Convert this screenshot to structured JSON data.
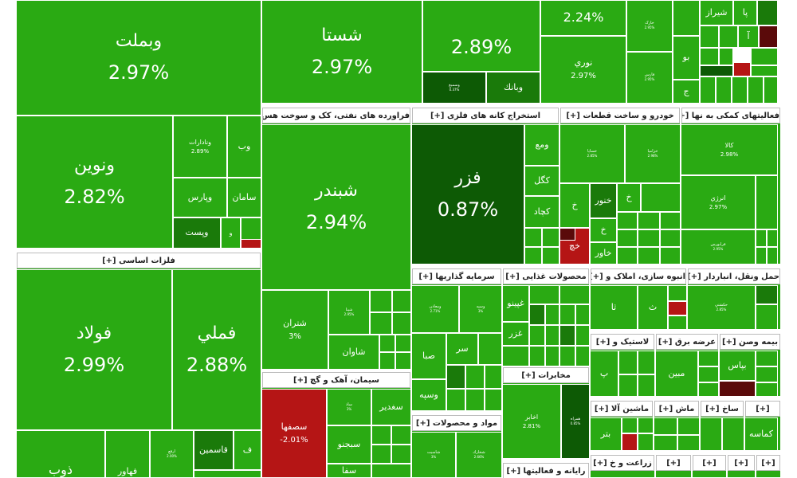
{
  "chart_data": {
    "type": "treemap",
    "colors": {
      "positive": "#2aaa13",
      "positive_dark": "#1a7a0a",
      "strong_dark": "#0d5a05",
      "negative": "#b51515",
      "negative_dark": "#5a0a0a",
      "border": "#ffffff"
    },
    "sectors": [
      {
        "id": "s_top_a",
        "label": ""
      },
      {
        "id": "s_top_b",
        "label": ""
      },
      {
        "id": "s_top_c",
        "label": ""
      },
      {
        "id": "s_top_d",
        "label": ""
      },
      {
        "id": "s_top_e",
        "label": ""
      },
      {
        "id": "s_base_metals",
        "label": "فلزات اساسی [+]"
      },
      {
        "id": "s_petroleum",
        "label": "فراورده های نفتی، کک و سوخت هس [+]"
      },
      {
        "id": "s_mining",
        "label": "استخراج کانه های فلزی [+]"
      },
      {
        "id": "s_auto",
        "label": "خودرو و ساخت قطعات [+]"
      },
      {
        "id": "s_aux",
        "label": "فعالیتهای کمکی به نها [+]"
      },
      {
        "id": "s_cement",
        "label": "سیمان، آهک و گچ [+]"
      },
      {
        "id": "s_investment",
        "label": "سرمایه گذاریها [+]"
      },
      {
        "id": "s_food",
        "label": "محصولات غذایی [+]"
      },
      {
        "id": "s_realestate",
        "label": "انبوه سازی، املاک و [+]"
      },
      {
        "id": "s_transport",
        "label": "حمل ونقل، انباردار [+]"
      },
      {
        "id": "s_telecom",
        "label": "مخابرات [+]"
      },
      {
        "id": "s_chemical",
        "label": "مواد و محصولات [+]"
      },
      {
        "id": "s_plastic",
        "label": "لاستیک و [+]"
      },
      {
        "id": "s_power",
        "label": "عرضه برق [+]"
      },
      {
        "id": "s_insurance",
        "label": "بیمه وصن [+]"
      },
      {
        "id": "s_machinery",
        "label": "ماشین آلا [+]"
      },
      {
        "id": "s_m2",
        "label": "ماش [+]"
      },
      {
        "id": "s_m3",
        "label": "ساخ [+]"
      },
      {
        "id": "s_m4",
        "label": "[+]"
      },
      {
        "id": "s_computer",
        "label": "رایانه و فعالیتها [+]"
      },
      {
        "id": "s_agri",
        "label": "زراعت و خ [+]"
      },
      {
        "id": "s_b2",
        "label": "[+]"
      },
      {
        "id": "s_b3",
        "label": "[+]"
      },
      {
        "id": "s_b4",
        "label": "[+]"
      },
      {
        "id": "s_b5",
        "label": "[+]"
      }
    ],
    "tiles": [
      {
        "id": "vbmellat",
        "name": "وبملت",
        "value": "2.97%",
        "pct": 2.97
      },
      {
        "id": "vnovin",
        "name": "ونوین",
        "value": "2.82%",
        "pct": 2.82
      },
      {
        "id": "vanadirat",
        "name": "ونادارات",
        "value": "2.89%",
        "pct": 2.89
      },
      {
        "id": "vb",
        "name": "وب",
        "value": "",
        "pct": 2.9
      },
      {
        "id": "vpars",
        "name": "وپارس",
        "value": "",
        "pct": 2.9
      },
      {
        "id": "saman",
        "name": "سامان",
        "value": "",
        "pct": 2.9
      },
      {
        "id": "vpost",
        "name": "وپست",
        "value": "",
        "pct": 2.5
      },
      {
        "id": "vo",
        "name": "و",
        "value": "",
        "pct": 2.5
      },
      {
        "id": "shasta",
        "name": "شستا",
        "value": "2.97%",
        "pct": 2.97
      },
      {
        "id": "tile_289",
        "name": "",
        "value": "2.89%",
        "pct": 2.89
      },
      {
        "id": "vmaskan",
        "name": "وسمیغ",
        "value": "0.37%",
        "pct": 0.37
      },
      {
        "id": "vbank",
        "name": "وبانك",
        "value": "",
        "pct": 2.5
      },
      {
        "id": "tile_224",
        "name": "",
        "value": "2.24%",
        "pct": 2.24
      },
      {
        "id": "noori",
        "name": "نوري",
        "value": "2.97%",
        "pct": 2.97
      },
      {
        "id": "khark",
        "name": "خارک",
        "value": "2.95%",
        "pct": 2.95
      },
      {
        "id": "pars",
        "name": "فارس",
        "value": "2.95%",
        "pct": 2.95
      },
      {
        "id": "shiraz",
        "name": "شيراز",
        "value": "",
        "pct": 2.9
      },
      {
        "id": "pa",
        "name": "پا",
        "value": "",
        "pct": 2.9
      },
      {
        "id": "a",
        "name": "آ",
        "value": "",
        "pct": 2.9
      },
      {
        "id": "bo",
        "name": "بو",
        "value": "",
        "pct": 2.9
      },
      {
        "id": "je",
        "name": "ج",
        "value": "",
        "pct": 2.9
      },
      {
        "id": "folad",
        "name": "فولاد",
        "value": "2.99%",
        "pct": 2.99
      },
      {
        "id": "fameli",
        "name": "فملي",
        "value": "2.88%",
        "pct": 2.88
      },
      {
        "id": "zob",
        "name": "ذوب",
        "value": "",
        "pct": 2.9
      },
      {
        "id": "fahor",
        "name": "فهاور",
        "value": "",
        "pct": 2.9
      },
      {
        "id": "arfa",
        "name": "ارفع",
        "value": "2.00%",
        "pct": 2.0
      },
      {
        "id": "ghasemin",
        "name": "قاسمين",
        "value": "",
        "pct": 2.9
      },
      {
        "id": "fe",
        "name": "ف",
        "value": "",
        "pct": 2.9
      },
      {
        "id": "shabandar",
        "name": "شبندر",
        "value": "2.94%",
        "pct": 2.94
      },
      {
        "id": "shtaran",
        "name": "شتران",
        "value": "3%",
        "pct": 3.0
      },
      {
        "id": "shpna",
        "name": "شپنا",
        "value": "2.95%",
        "pct": 2.95
      },
      {
        "id": "shavan",
        "name": "شاوان",
        "value": "",
        "pct": 2.9
      },
      {
        "id": "fazar",
        "name": "فزر",
        "value": "0.87%",
        "pct": 0.87
      },
      {
        "id": "vmoa",
        "name": "ومع",
        "value": "",
        "pct": 2.9
      },
      {
        "id": "kegol",
        "name": "كگل",
        "value": "",
        "pct": 2.9
      },
      {
        "id": "kechad",
        "name": "كچاد",
        "value": "",
        "pct": 2.9
      },
      {
        "id": "khsapa",
        "name": "خساپا",
        "value": "2.85%",
        "pct": 2.85
      },
      {
        "id": "khzamia",
        "name": "خزاميا",
        "value": "2.98%",
        "pct": 2.98
      },
      {
        "id": "kh1",
        "name": "خ",
        "value": "",
        "pct": 2.9
      },
      {
        "id": "khnor",
        "name": "خنور",
        "value": "",
        "pct": 2.9
      },
      {
        "id": "kh2",
        "name": "خ",
        "value": "",
        "pct": 2.9
      },
      {
        "id": "kh3",
        "name": "خ",
        "value": "",
        "pct": 2.9
      },
      {
        "id": "khavar",
        "name": "خاور",
        "value": "",
        "pct": 2.9
      },
      {
        "id": "khaj",
        "name": "خچ",
        "value": "",
        "pct": -2.0
      },
      {
        "id": "kala",
        "name": "کالا",
        "value": "2.98%",
        "pct": 2.98
      },
      {
        "id": "anrje",
        "name": "انرژي",
        "value": "2.97%",
        "pct": 2.97
      },
      {
        "id": "faravar",
        "name": "فرابورس",
        "value": "2.95%",
        "pct": 2.95
      },
      {
        "id": "sesfaha",
        "name": "سصفها",
        "value": "-2.01%",
        "pct": -2.01
      },
      {
        "id": "sadesh",
        "name": "ساذ",
        "value": "3%",
        "pct": 3.0
      },
      {
        "id": "sghadir",
        "name": "سغدير",
        "value": "",
        "pct": 2.9
      },
      {
        "id": "sepijnoo",
        "name": "سبجنو",
        "value": "",
        "pct": 2.9
      },
      {
        "id": "sefa",
        "name": "سفا",
        "value": "",
        "pct": 2.9
      },
      {
        "id": "vmaadn",
        "name": "ومعادن",
        "value": "2.71%",
        "pct": 2.71
      },
      {
        "id": "vsiba",
        "name": "وسپه",
        "value": "3%",
        "pct": 3.0
      },
      {
        "id": "sar",
        "name": "سر",
        "value": "",
        "pct": 2.9
      },
      {
        "id": "seba",
        "name": "صبا",
        "value": "",
        "pct": 2.9
      },
      {
        "id": "vsepah",
        "name": "وسپه",
        "value": "",
        "pct": 2.9
      },
      {
        "id": "ghpino",
        "name": "غپينو",
        "value": "",
        "pct": 2.9
      },
      {
        "id": "ghzar",
        "name": "غزر",
        "value": "",
        "pct": 2.9
      },
      {
        "id": "vatno",
        "name": "وثنو",
        "value": "",
        "pct": 2.9
      },
      {
        "id": "tha",
        "name": "ثا",
        "value": "",
        "pct": 2.9
      },
      {
        "id": "tha2",
        "name": "ث",
        "value": "",
        "pct": 2.9
      },
      {
        "id": "hamlkesht",
        "name": "حكشتي",
        "value": "2.85%",
        "pct": 2.85
      },
      {
        "id": "akhaber",
        "name": "اخابر",
        "value": "2.81%",
        "pct": 2.81
      },
      {
        "id": "hamrah",
        "name": "همراه",
        "value": "0.85%",
        "pct": 0.85
      },
      {
        "id": "shasit",
        "name": "شاسيت",
        "value": "3%",
        "pct": 3.0
      },
      {
        "id": "shkhark",
        "name": "شخارك",
        "value": "2.66%",
        "pct": 2.66
      },
      {
        "id": "pe",
        "name": "پ",
        "value": "",
        "pct": 2.9
      },
      {
        "id": "mobin",
        "name": "مبين",
        "value": "",
        "pct": 2.9
      },
      {
        "id": "bipas",
        "name": "بپاس",
        "value": "",
        "pct": 2.9
      },
      {
        "id": "btr",
        "name": "بتر",
        "value": "",
        "pct": 2.9
      },
      {
        "id": "kmase",
        "name": "كماسه",
        "value": "",
        "pct": 2.9
      }
    ]
  }
}
